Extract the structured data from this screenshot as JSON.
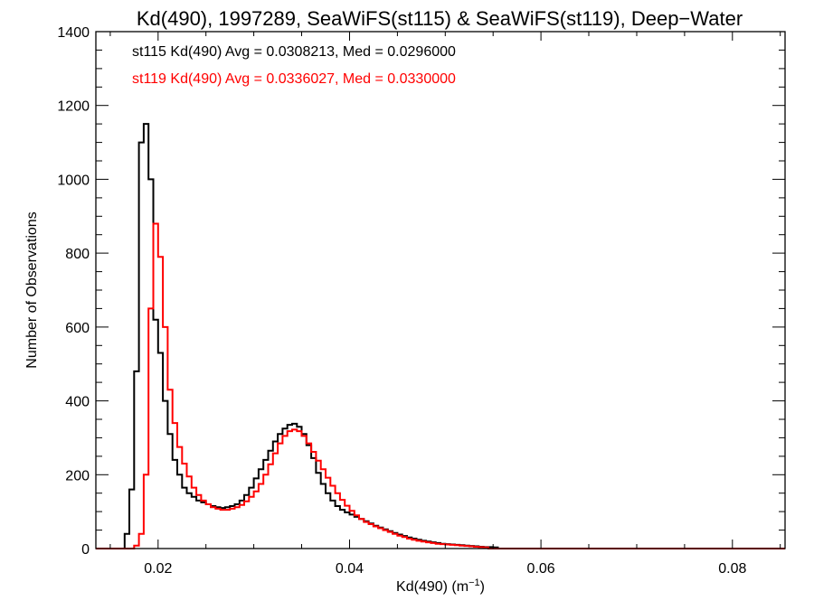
{
  "chart_data": {
    "type": "line",
    "title": "Kd(490), 1997289, SeaWiFS(st115) & SeaWiFS(st119), Deep−Water",
    "xlabel": "Kd(490) (m",
    "xlabel_sup": "−1",
    "xlabel_suffix": ")",
    "ylabel": "Number of Observations",
    "xlim": [
      0.0135,
      0.0855
    ],
    "ylim": [
      0,
      1400
    ],
    "xticks": [
      0.02,
      0.04,
      0.06,
      0.08
    ],
    "xtick_labels": [
      "0.02",
      "0.04",
      "0.06",
      "0.08"
    ],
    "yticks": [
      0,
      200,
      400,
      600,
      800,
      1000,
      1200,
      1400
    ],
    "ytick_labels": [
      "0",
      "200",
      "400",
      "600",
      "800",
      "1000",
      "1200",
      "1400"
    ],
    "bin_width": 0.0005,
    "annotations": [
      {
        "text": "st115 Kd(490) Avg = 0.0308213, Med = 0.0296000",
        "color": "#000000"
      },
      {
        "text": "st119 Kd(490) Avg = 0.0336027, Med = 0.0330000",
        "color": "#ff0000"
      }
    ],
    "series": [
      {
        "name": "st115",
        "color": "#000000",
        "x_start": 0.0165,
        "values": [
          40,
          160,
          480,
          1100,
          1150,
          1000,
          620,
          530,
          400,
          310,
          240,
          200,
          165,
          150,
          140,
          130,
          125,
          120,
          115,
          112,
          110,
          112,
          115,
          120,
          130,
          145,
          165,
          190,
          215,
          240,
          265,
          290,
          310,
          325,
          335,
          338,
          330,
          310,
          280,
          245,
          205,
          175,
          150,
          130,
          115,
          105,
          98,
          92,
          86,
          80,
          74,
          68,
          62,
          57,
          52,
          47,
          42,
          38,
          34,
          30,
          27,
          24,
          21,
          19,
          17,
          15,
          13,
          12,
          11,
          10,
          9,
          8,
          7,
          6,
          5,
          4,
          4,
          3
        ]
      },
      {
        "name": "st119",
        "color": "#ff0000",
        "x_start": 0.0175,
        "values": [
          8,
          40,
          200,
          650,
          880,
          790,
          600,
          430,
          340,
          275,
          230,
          195,
          165,
          145,
          130,
          120,
          112,
          108,
          105,
          105,
          108,
          112,
          118,
          128,
          140,
          155,
          175,
          200,
          228,
          258,
          285,
          305,
          318,
          322,
          318,
          305,
          285,
          262,
          238,
          215,
          192,
          170,
          150,
          132,
          116,
          102,
          90,
          80,
          72,
          66,
          60,
          55,
          50,
          45,
          40,
          35,
          31,
          27,
          24,
          21,
          19,
          17,
          15,
          13,
          12,
          11,
          10,
          9,
          8,
          7,
          6,
          5,
          4,
          3
        ]
      }
    ]
  }
}
